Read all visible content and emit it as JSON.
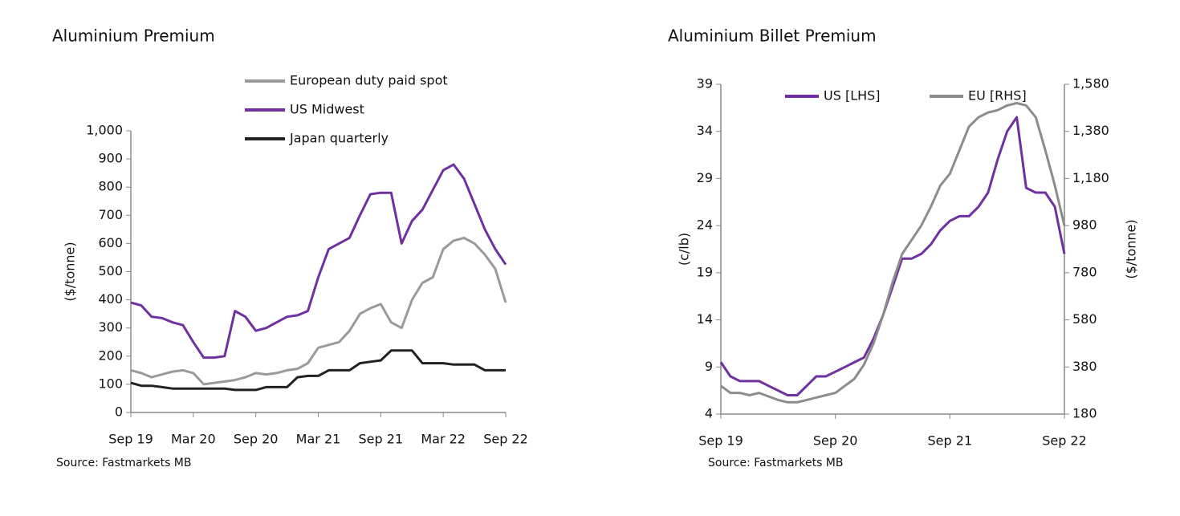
{
  "chart_data": [
    {
      "type": "line",
      "title": "Aluminium Premium",
      "source": "Source: Fastmarkets MB",
      "ylabel": "($/tonne)",
      "categories": [
        "Sep 19",
        null,
        null,
        null,
        null,
        null,
        "Mar 20",
        null,
        null,
        null,
        null,
        null,
        "Sep 20",
        null,
        null,
        null,
        null,
        null,
        "Mar 21",
        null,
        null,
        null,
        null,
        null,
        "Sep 21",
        null,
        null,
        null,
        null,
        null,
        "Mar 22",
        null,
        null,
        null,
        null,
        null,
        "Sep 22"
      ],
      "ylim": [
        0,
        1000
      ],
      "yticks": [
        0,
        100,
        200,
        300,
        400,
        500,
        600,
        700,
        800,
        900,
        {
          "value": 1000,
          "label": "1,000"
        }
      ],
      "series": [
        {
          "name": "European duty paid spot",
          "color": "#9a9a9a",
          "values": [
            150,
            140,
            125,
            135,
            145,
            150,
            140,
            100,
            105,
            110,
            115,
            125,
            140,
            135,
            140,
            150,
            155,
            175,
            230,
            240,
            250,
            290,
            350,
            370,
            385,
            320,
            300,
            400,
            460,
            480,
            580,
            610,
            620,
            600,
            560,
            510,
            390
          ]
        },
        {
          "name": "US Midwest",
          "color": "#7030a0",
          "values": [
            390,
            380,
            340,
            335,
            320,
            310,
            250,
            195,
            195,
            200,
            360,
            340,
            290,
            300,
            320,
            340,
            345,
            360,
            480,
            580,
            600,
            620,
            700,
            775,
            780,
            780,
            600,
            680,
            720,
            790,
            860,
            880,
            830,
            740,
            650,
            580,
            525
          ]
        },
        {
          "name": "Japan quarterly",
          "color": "#222222",
          "values": [
            105,
            95,
            95,
            90,
            85,
            85,
            85,
            85,
            85,
            85,
            80,
            80,
            80,
            90,
            90,
            90,
            125,
            130,
            130,
            150,
            150,
            150,
            175,
            180,
            185,
            220,
            220,
            220,
            175,
            175,
            175,
            170,
            170,
            170,
            150,
            150,
            150
          ]
        }
      ]
    },
    {
      "type": "line",
      "title": "Aluminium Billet Premium",
      "source": "Source: Fastmarkets MB",
      "ylabel": "(c/lb)",
      "y2label": "($/tonne)",
      "categories": [
        "Sep 19",
        null,
        null,
        null,
        null,
        null,
        null,
        null,
        null,
        null,
        null,
        null,
        "Sep 20",
        null,
        null,
        null,
        null,
        null,
        null,
        null,
        null,
        null,
        null,
        null,
        "Sep 21",
        null,
        null,
        null,
        null,
        null,
        null,
        null,
        null,
        null,
        null,
        null,
        "Sep 22"
      ],
      "ylim": [
        4,
        39
      ],
      "yticks": [
        4,
        9,
        14,
        19,
        24,
        29,
        34,
        39
      ],
      "y2lim": [
        180,
        1580
      ],
      "y2ticks": [
        180,
        380,
        580,
        780,
        980,
        {
          "value": 1180,
          "label": "1,180"
        },
        {
          "value": 1380,
          "label": "1,380"
        },
        {
          "value": 1580,
          "label": "1,580"
        }
      ],
      "series": [
        {
          "name": "US [LHS]",
          "color": "#7030a0",
          "values": [
            9.5,
            8,
            7.5,
            7.5,
            7.5,
            7,
            6.5,
            6,
            6,
            7,
            8,
            8,
            8.5,
            9,
            9.5,
            10,
            12,
            14.5,
            17.5,
            20.5,
            20.5,
            21,
            22,
            23.5,
            24.5,
            25,
            25,
            26,
            27.5,
            31,
            34,
            35.5,
            28,
            27.5,
            27.5,
            26,
            21
          ]
        },
        {
          "name": "EU [RHS]",
          "color": "#8c8c8c",
          "axis": "y2",
          "values": [
            300,
            270,
            270,
            260,
            270,
            255,
            240,
            230,
            230,
            240,
            250,
            260,
            270,
            300,
            330,
            390,
            480,
            600,
            740,
            860,
            920,
            980,
            1060,
            1150,
            1200,
            1300,
            1400,
            1440,
            1460,
            1470,
            1490,
            1500,
            1490,
            1440,
            1300,
            1150,
            980
          ]
        }
      ]
    }
  ]
}
